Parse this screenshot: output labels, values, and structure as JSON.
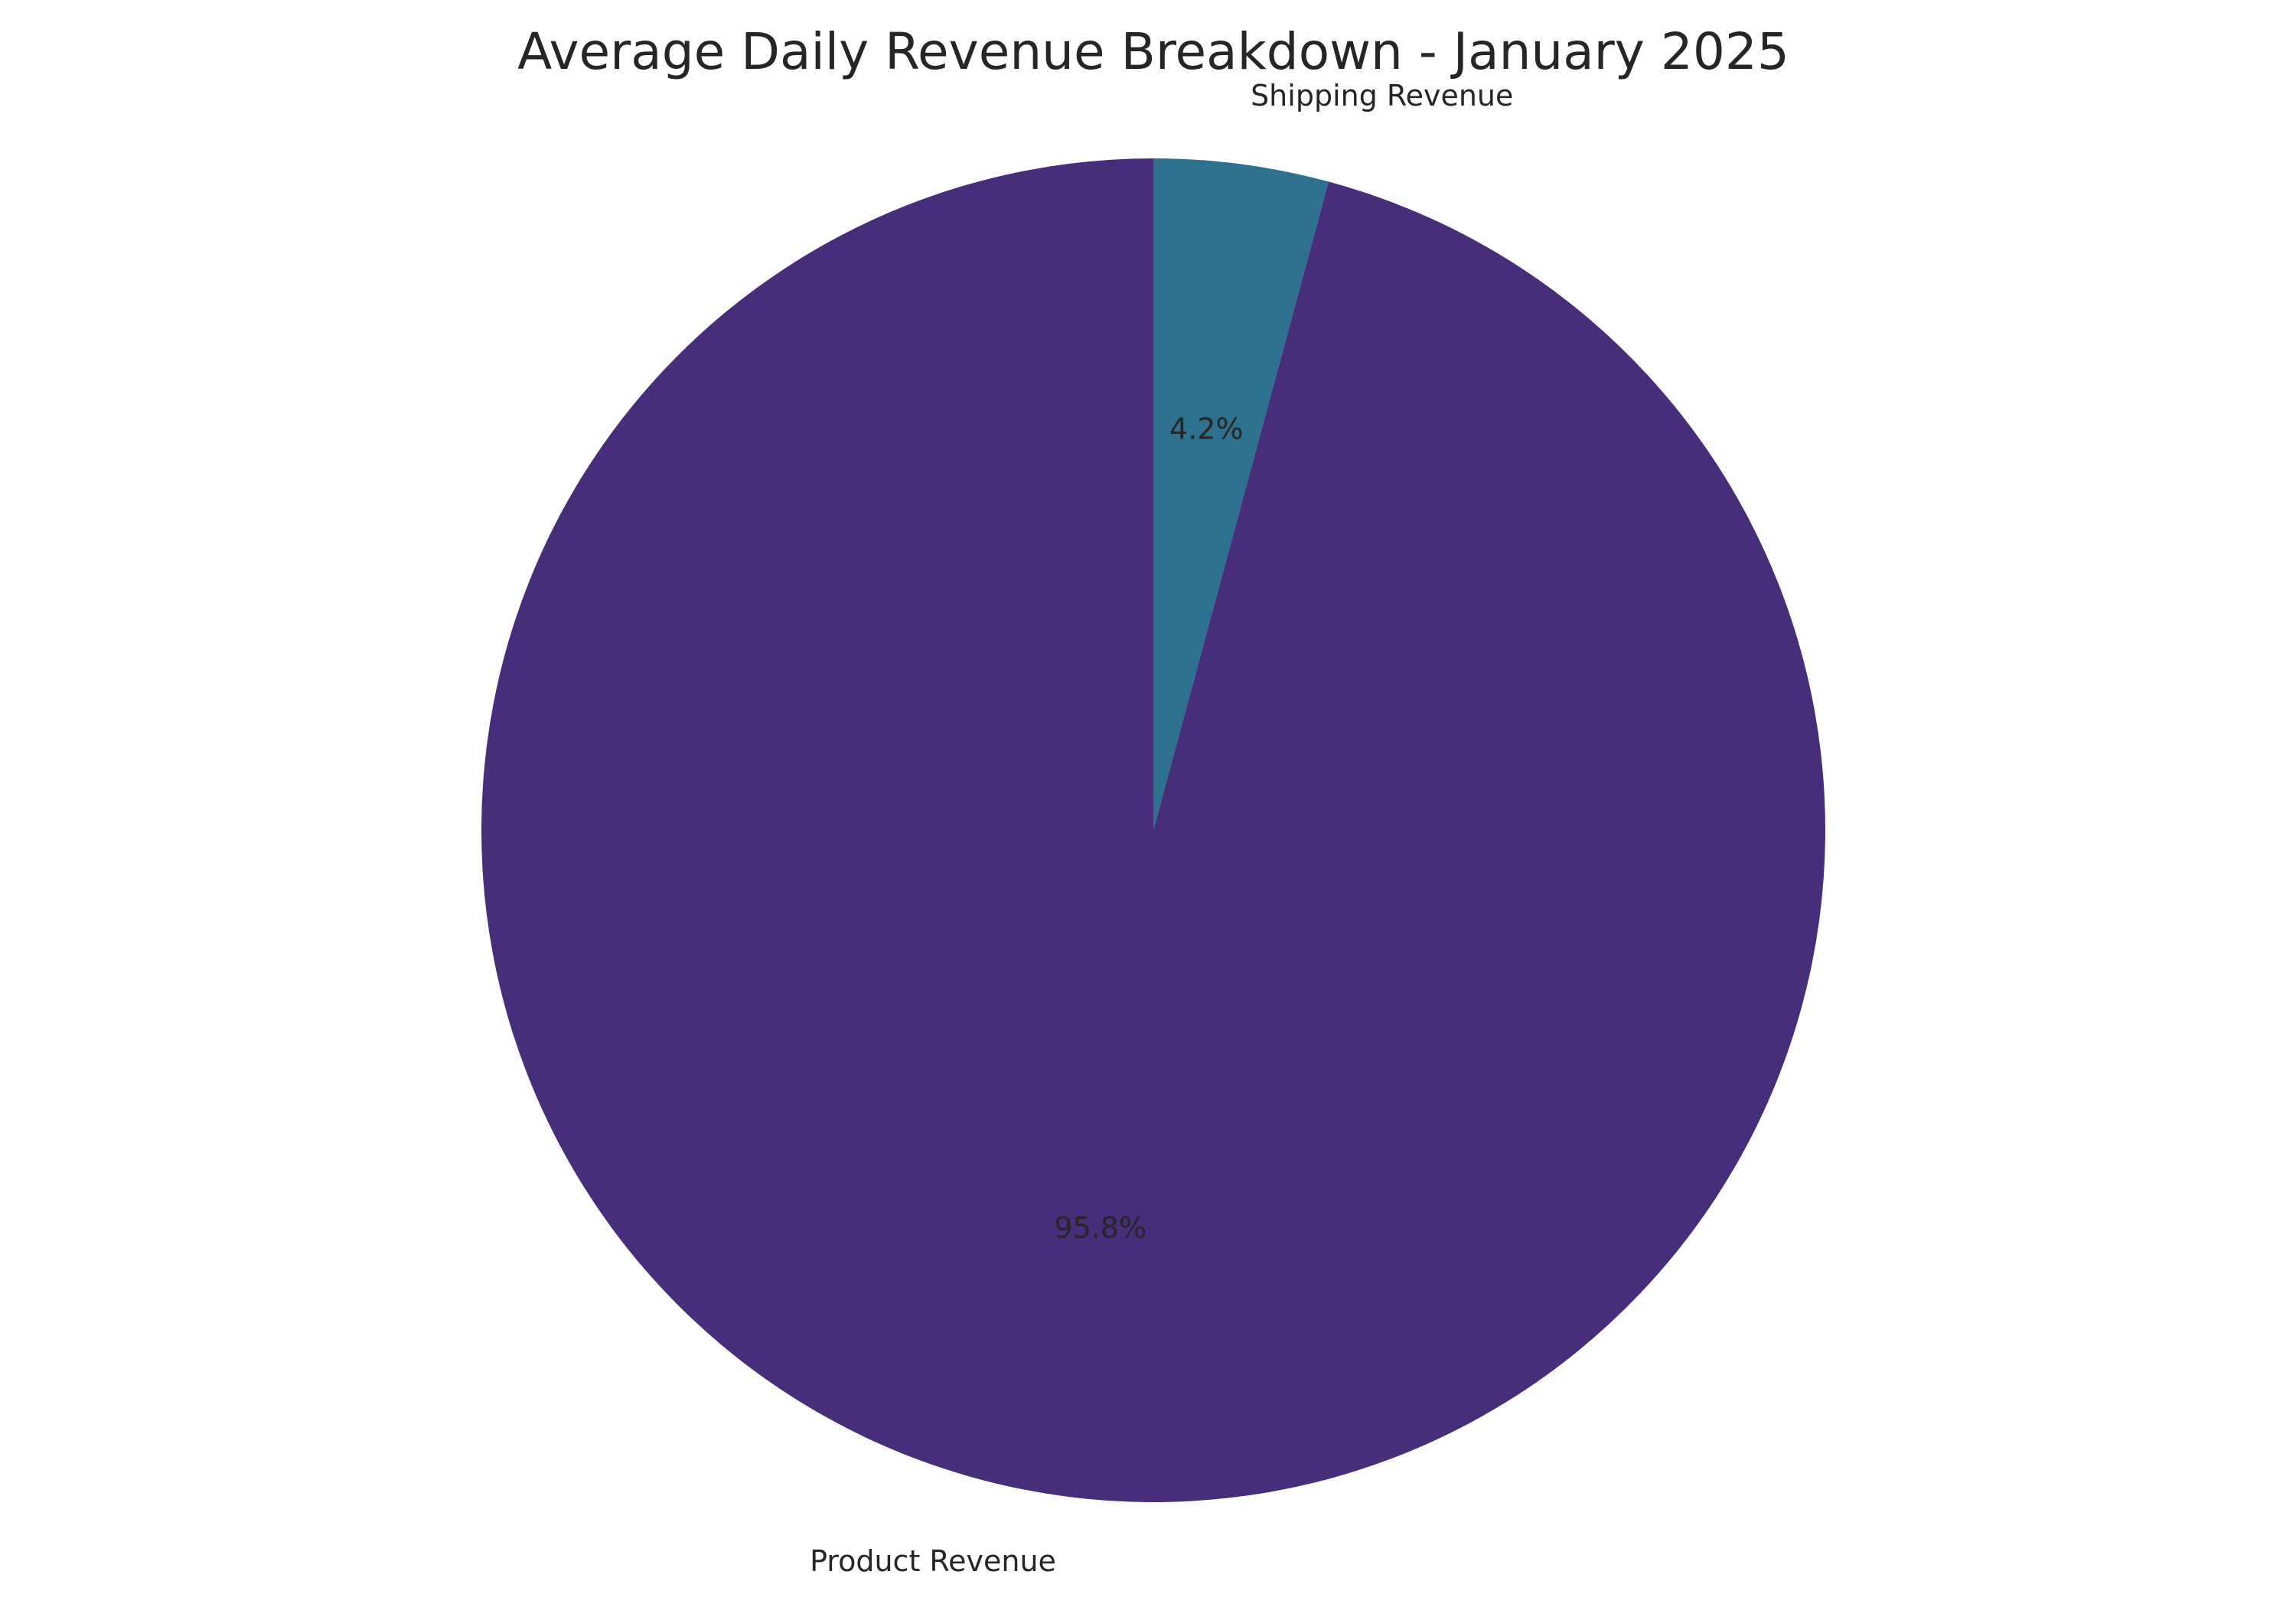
{
  "chart_data": {
    "type": "pie",
    "title": "Average Daily Revenue Breakdown - January 2025",
    "start_angle": "top (12 o'clock)",
    "direction": "counterclockwise",
    "slices": [
      {
        "label": "Product Revenue",
        "value": 95.8,
        "pct_label": "95.8%",
        "color": "#482d7a"
      },
      {
        "label": "Shipping Revenue",
        "value": 4.2,
        "pct_label": "4.2%",
        "color": "#2e718e"
      }
    ]
  }
}
